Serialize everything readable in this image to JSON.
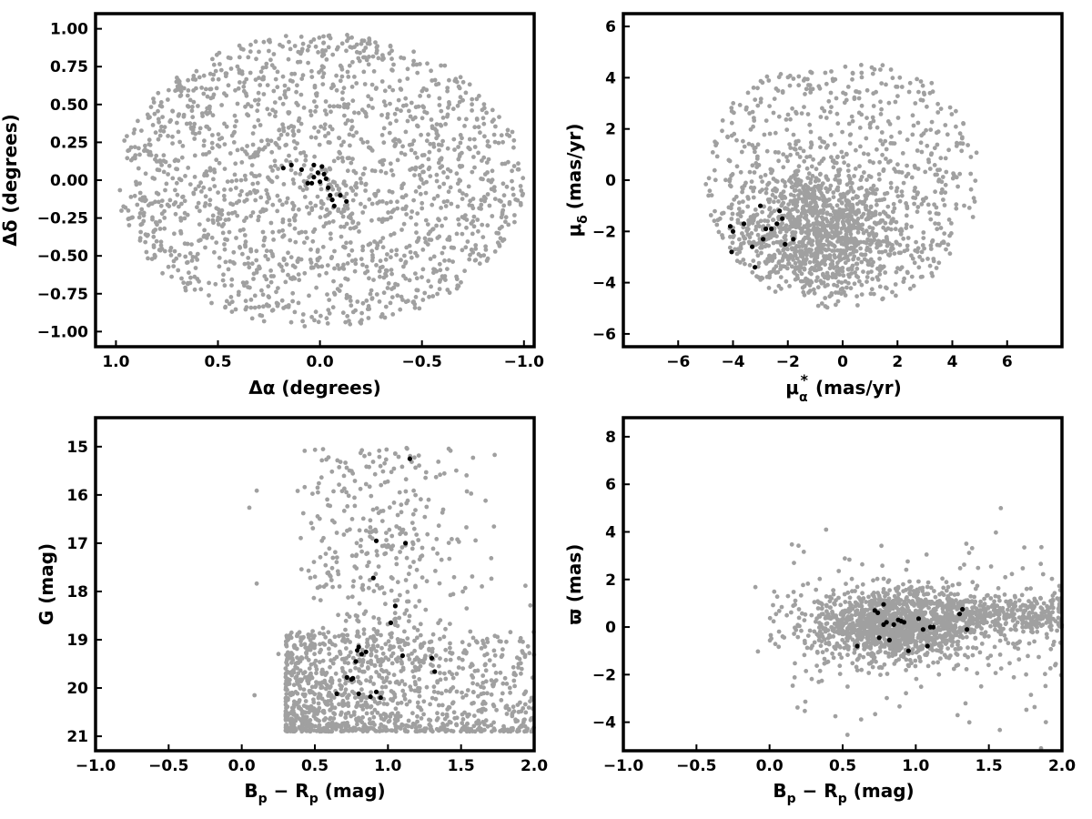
{
  "colors": {
    "field": "#a0a0a0",
    "members": "#000000",
    "frame": "#000000",
    "background": "#ffffff"
  },
  "chart_data": [
    {
      "type": "scatter",
      "id": "sky",
      "xlabel": "Δα (degrees)",
      "ylabel": "Δδ (degrees)",
      "xlim": [
        1.1,
        -1.05
      ],
      "ylim": [
        -1.1,
        1.1
      ],
      "x_inverted": true,
      "xticks": [
        1.0,
        0.5,
        0.0,
        -0.5,
        -1.0
      ],
      "xtick_labels": [
        "1.0",
        "0.5",
        "0.0",
        "−0.5",
        "−1.0"
      ],
      "yticks": [
        -1.0,
        -0.75,
        -0.5,
        -0.25,
        0.0,
        0.25,
        0.5,
        0.75,
        1.0
      ],
      "ytick_labels": [
        "−1.00",
        "−0.75",
        "−0.50",
        "−0.25",
        "0.00",
        "0.25",
        "0.50",
        "0.75",
        "1.00"
      ],
      "field_distribution": {
        "shape": "disk",
        "center": [
          0.0,
          0.0
        ],
        "radius_x": 1.0,
        "radius_y": 0.97,
        "count": 1800
      },
      "members": {
        "x": [
          0.18,
          0.14,
          0.09,
          0.03,
          0.01,
          -0.02,
          0.04,
          0.0,
          -0.03,
          -0.04,
          -0.05,
          -0.06,
          -0.07,
          -0.1,
          -0.13,
          0.06,
          0.03,
          -0.01
        ],
        "y": [
          0.08,
          0.1,
          0.07,
          0.1,
          0.05,
          0.04,
          -0.02,
          -0.01,
          0.01,
          -0.05,
          -0.1,
          -0.13,
          -0.17,
          -0.1,
          -0.14,
          -0.02,
          0.02,
          0.09
        ]
      }
    },
    {
      "type": "scatter",
      "id": "proper-motion",
      "xlabel_main": "μ",
      "xlabel_sub": "α",
      "xlabel_sup": "*",
      "xlabel_units": "(mas/yr)",
      "ylabel_main": "μ",
      "ylabel_sub": "δ",
      "ylabel_units": "(mas/yr)",
      "xlim": [
        -8,
        8
      ],
      "ylim": [
        -6.5,
        6.5
      ],
      "xticks": [
        -6,
        -4,
        -2,
        0,
        2,
        4,
        6
      ],
      "xtick_labels": [
        "−6",
        "−4",
        "−2",
        "0",
        "2",
        "4",
        "6"
      ],
      "yticks": [
        -6,
        -4,
        -2,
        0,
        2,
        4,
        6
      ],
      "ytick_labels": [
        "−6",
        "−4",
        "−2",
        "0",
        "2",
        "4",
        "6"
      ],
      "field_distribution": {
        "shape": "disk",
        "center": [
          0.0,
          0.0
        ],
        "radius": 5.0,
        "clip_x": [
          -5.0,
          5.0
        ],
        "clip_y": [
          -5.0,
          4.5
        ],
        "concentration": {
          "center": [
            -1.0,
            -2.0
          ],
          "sx": 1.5,
          "sy": 1.3,
          "count": 1100
        },
        "count": 700
      },
      "members": {
        "x": [
          -4.1,
          -4.0,
          -4.05,
          -3.3,
          -3.2,
          -2.9,
          -2.6,
          -2.4,
          -2.2,
          -2.1,
          -1.8,
          -3.0,
          -2.3,
          -3.6,
          -2.8
        ],
        "y": [
          -1.8,
          -2.0,
          -2.8,
          -2.6,
          -3.4,
          -2.3,
          -1.9,
          -1.7,
          -1.5,
          -2.5,
          -2.3,
          -1.0,
          -1.2,
          -1.7,
          -1.9
        ]
      }
    },
    {
      "type": "scatter",
      "id": "cmd",
      "xlabel_main": "B",
      "xlabel_sub1": "p",
      "xlabel_minus": " − R",
      "xlabel_sub2": "p",
      "xlabel_units": " (mag)",
      "ylabel": "G (mag)",
      "xlim": [
        -1.0,
        2.0
      ],
      "ylim": [
        21.3,
        14.4
      ],
      "y_inverted": true,
      "xticks": [
        -1.0,
        -0.5,
        0.0,
        0.5,
        1.0,
        1.5,
        2.0
      ],
      "xtick_labels": [
        "−1.0",
        "−0.5",
        "0.0",
        "0.5",
        "1.0",
        "1.5",
        "2.0"
      ],
      "yticks": [
        15,
        16,
        17,
        18,
        19,
        20,
        21
      ],
      "ytick_labels": [
        "15",
        "16",
        "17",
        "18",
        "19",
        "20",
        "21"
      ],
      "field_distribution": {
        "faint_band": {
          "x": [
            0.3,
            2.0
          ],
          "y": [
            18.8,
            20.9
          ],
          "count": 1100
        },
        "plume": {
          "x_center": 0.95,
          "x_spread": 0.25,
          "y": [
            15.0,
            19.5
          ],
          "count": 350
        },
        "sparse": {
          "x": [
            0.0,
            2.0
          ],
          "y": [
            15.0,
            21.0
          ],
          "count": 80
        }
      },
      "members": {
        "x": [
          0.65,
          0.72,
          0.75,
          0.8,
          0.88,
          0.92,
          0.95,
          0.78,
          0.8,
          0.82,
          0.85,
          1.02,
          1.05,
          0.9,
          0.92,
          1.1,
          1.12,
          1.15,
          1.3,
          1.32,
          0.76,
          0.79
        ],
        "y": [
          20.12,
          19.78,
          19.82,
          20.12,
          20.18,
          20.08,
          20.2,
          19.45,
          19.15,
          19.3,
          19.25,
          18.65,
          18.3,
          17.72,
          16.95,
          19.33,
          17.0,
          15.25,
          19.38,
          19.66,
          19.8,
          19.22
        ]
      }
    },
    {
      "type": "scatter",
      "id": "parallax",
      "xlabel_main": "B",
      "xlabel_sub1": "p",
      "xlabel_minus": " − R",
      "xlabel_sub2": "p",
      "xlabel_units": " (mag)",
      "ylabel": "ϖ (mas)",
      "xlim": [
        -1.0,
        2.0
      ],
      "ylim": [
        -5.2,
        8.8
      ],
      "xticks": [
        -1.0,
        -0.5,
        0.0,
        0.5,
        1.0,
        1.5,
        2.0
      ],
      "xtick_labels": [
        "−1.0",
        "−0.5",
        "0.0",
        "0.5",
        "1.0",
        "1.5",
        "2.0"
      ],
      "yticks": [
        -4,
        -2,
        0,
        2,
        4,
        6,
        8
      ],
      "ytick_labels": [
        "−4",
        "−2",
        "0",
        "2",
        "4",
        "6",
        "8"
      ],
      "field_distribution": {
        "core": {
          "x_center": 0.85,
          "x_spread": 0.28,
          "y_center": 0.1,
          "y_spread": 0.75,
          "count": 1300
        },
        "tail": {
          "x": [
            1.2,
            2.0
          ],
          "y_center": 0.5,
          "y_spread": 0.45,
          "count": 350
        },
        "scatter": {
          "x": [
            0.0,
            2.0
          ],
          "y_center": 0.0,
          "y_spread": 2.0,
          "count": 200
        }
      },
      "members": {
        "x": [
          0.6,
          0.72,
          0.75,
          0.78,
          0.8,
          0.82,
          0.85,
          0.88,
          0.9,
          0.92,
          0.95,
          1.02,
          1.05,
          1.08,
          1.1,
          1.12,
          1.3,
          1.32,
          1.35,
          0.78,
          0.74
        ],
        "y": [
          -0.8,
          0.7,
          -0.45,
          0.95,
          0.2,
          -0.55,
          0.1,
          0.3,
          0.25,
          0.2,
          -1.0,
          0.35,
          -0.1,
          -0.8,
          0.0,
          0.0,
          0.55,
          0.75,
          -0.1,
          0.1,
          0.6
        ]
      }
    }
  ]
}
